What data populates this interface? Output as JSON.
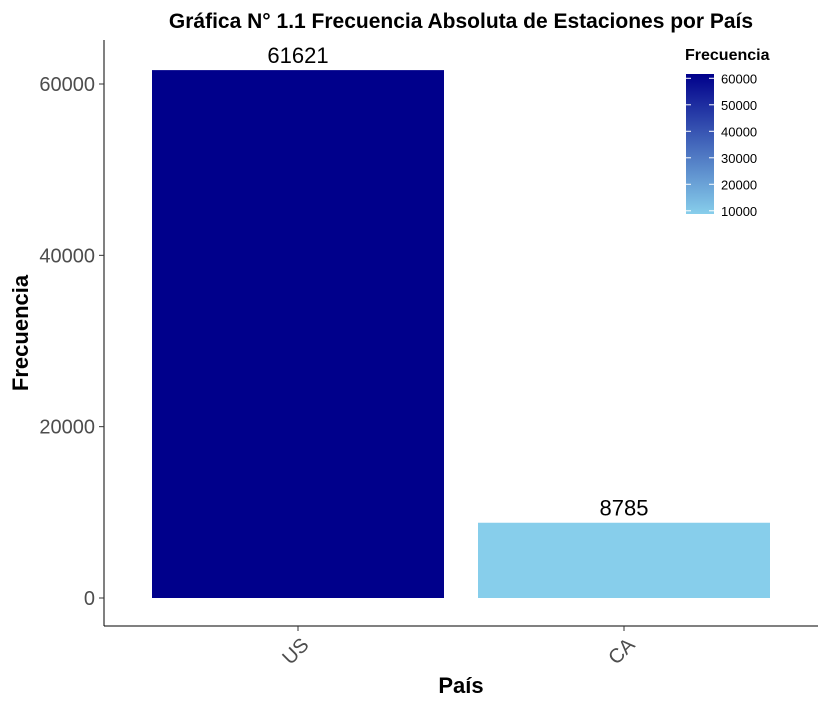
{
  "chart_data": {
    "type": "bar",
    "title": "Gráfica N° 1.1 Frecuencia Absoluta de Estaciones por País",
    "xlabel": "País",
    "ylabel": "Frecuencia",
    "categories": [
      "US",
      "CA"
    ],
    "values": [
      61621,
      8785
    ],
    "data_labels": [
      "61621",
      "8785"
    ],
    "ylim": [
      0,
      65000
    ],
    "yticks": [
      0,
      20000,
      40000,
      60000
    ],
    "ytick_labels": [
      "0",
      "20000",
      "40000",
      "60000"
    ],
    "grid": false,
    "legend": {
      "title": "Frecuencia",
      "placement": "top-right",
      "type": "gradient",
      "ticks": [
        10000,
        20000,
        30000,
        40000,
        50000,
        60000
      ],
      "tick_labels": [
        "10000",
        "20000",
        "30000",
        "40000",
        "50000",
        "60000"
      ],
      "range": [
        8785,
        61621
      ]
    },
    "colors": {
      "low": "#87ceeb",
      "high": "#00008b"
    }
  }
}
